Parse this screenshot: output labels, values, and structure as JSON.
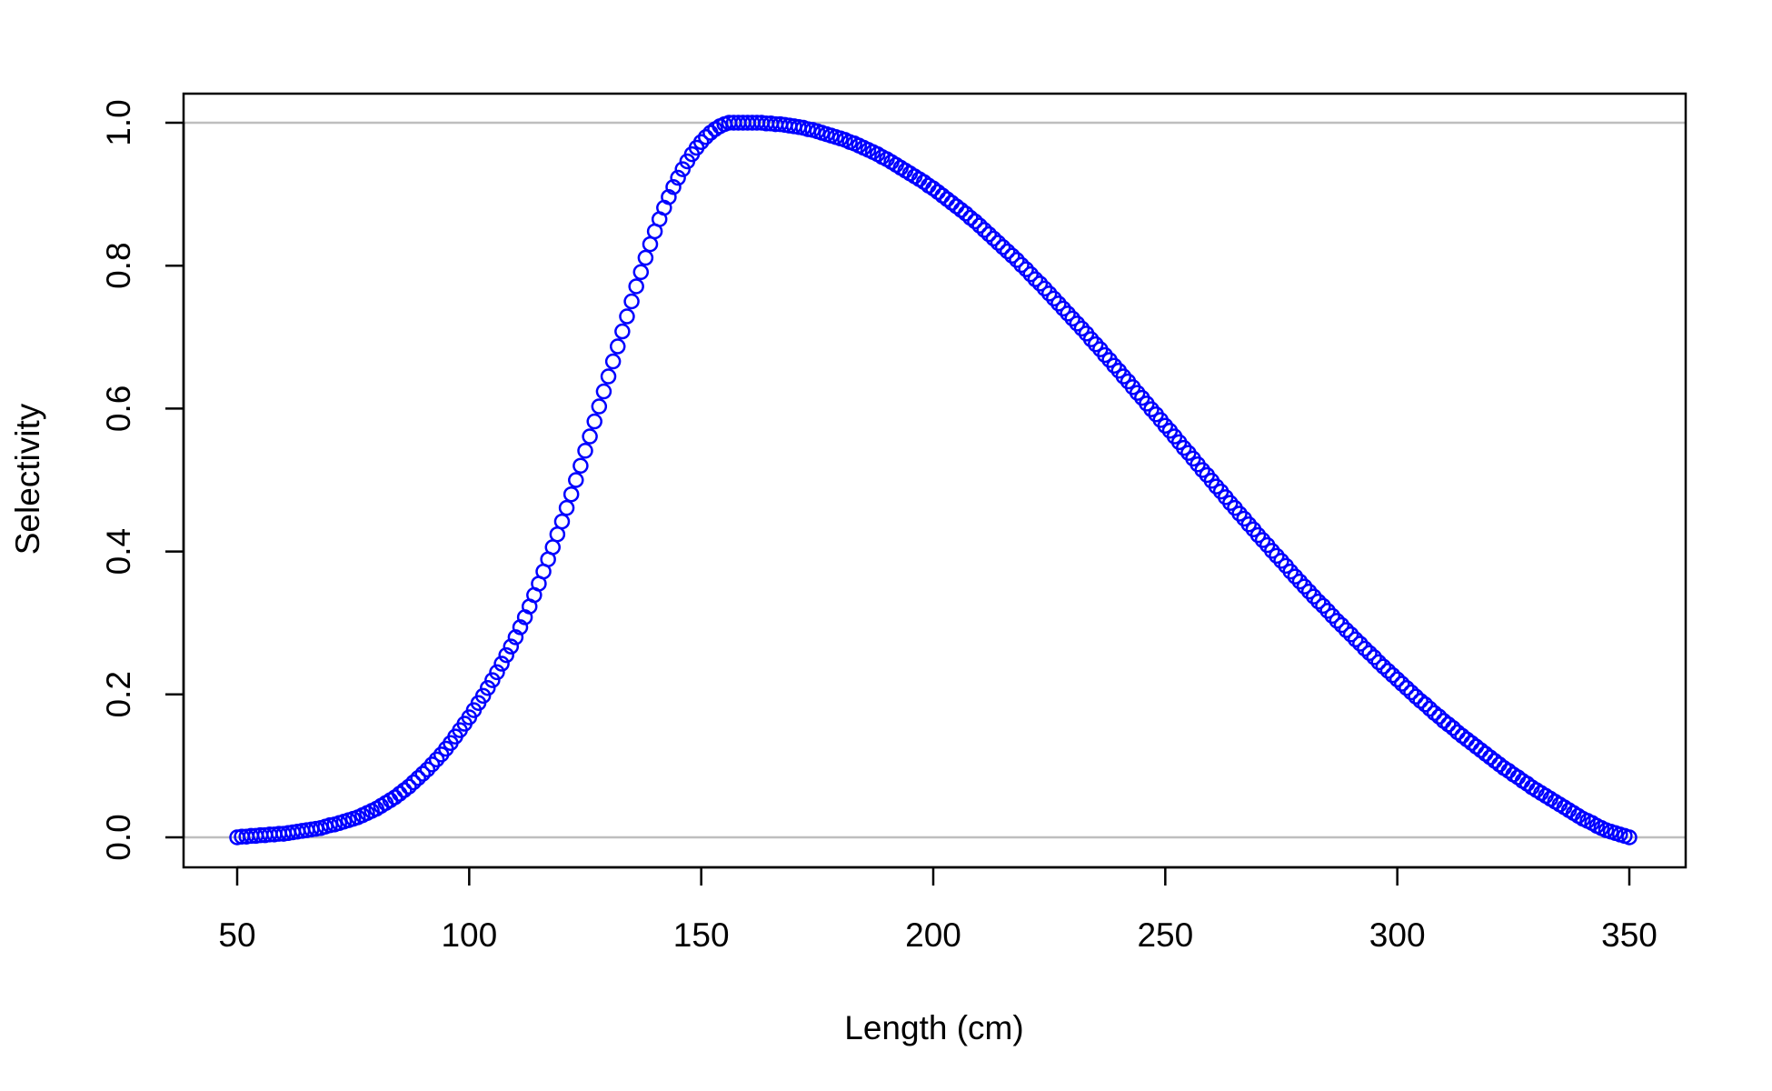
{
  "chart_data": {
    "type": "scatter",
    "title": "",
    "xlabel": "Length (cm)",
    "ylabel": "Selectivity",
    "xlim": [
      50,
      350
    ],
    "ylim": [
      0,
      1
    ],
    "xticks": [
      50,
      100,
      150,
      200,
      250,
      300,
      350
    ],
    "yticks": [
      0.0,
      0.2,
      0.4,
      0.6,
      0.8,
      1.0
    ],
    "ytick_labels": [
      "0.0",
      "0.2",
      "0.4",
      "0.6",
      "0.8",
      "1.0"
    ],
    "reference_lines_y": [
      0,
      1
    ],
    "marker": "open-circle",
    "series": [
      {
        "color": "#0000ff",
        "x_start": 50,
        "x_end": 350,
        "x_step": 1,
        "y": [
          0.0,
          0.001,
          0.001,
          0.002,
          0.002,
          0.003,
          0.003,
          0.004,
          0.004,
          0.005,
          0.005,
          0.006,
          0.007,
          0.008,
          0.009,
          0.01,
          0.011,
          0.012,
          0.013,
          0.015,
          0.017,
          0.018,
          0.02,
          0.022,
          0.024,
          0.026,
          0.028,
          0.031,
          0.034,
          0.037,
          0.04,
          0.044,
          0.048,
          0.052,
          0.056,
          0.061,
          0.066,
          0.071,
          0.077,
          0.083,
          0.089,
          0.095,
          0.102,
          0.109,
          0.116,
          0.124,
          0.132,
          0.141,
          0.15,
          0.159,
          0.168,
          0.178,
          0.188,
          0.198,
          0.209,
          0.22,
          0.231,
          0.243,
          0.255,
          0.267,
          0.28,
          0.294,
          0.308,
          0.323,
          0.339,
          0.355,
          0.372,
          0.389,
          0.406,
          0.424,
          0.442,
          0.461,
          0.48,
          0.5,
          0.52,
          0.541,
          0.561,
          0.582,
          0.603,
          0.624,
          0.645,
          0.666,
          0.687,
          0.708,
          0.729,
          0.75,
          0.771,
          0.791,
          0.811,
          0.83,
          0.848,
          0.865,
          0.881,
          0.896,
          0.91,
          0.923,
          0.935,
          0.946,
          0.956,
          0.965,
          0.973,
          0.98,
          0.986,
          0.991,
          0.995,
          0.998,
          1.0,
          1.0,
          1.0,
          1.0,
          1.0,
          1.0,
          1.0,
          1.0,
          0.999,
          0.999,
          0.998,
          0.998,
          0.997,
          0.996,
          0.995,
          0.994,
          0.993,
          0.991,
          0.99,
          0.988,
          0.986,
          0.984,
          0.982,
          0.98,
          0.978,
          0.976,
          0.973,
          0.971,
          0.968,
          0.965,
          0.962,
          0.959,
          0.956,
          0.952,
          0.949,
          0.945,
          0.941,
          0.937,
          0.933,
          0.929,
          0.925,
          0.921,
          0.917,
          0.912,
          0.908,
          0.903,
          0.898,
          0.893,
          0.888,
          0.883,
          0.878,
          0.873,
          0.867,
          0.862,
          0.856,
          0.85,
          0.844,
          0.838,
          0.832,
          0.826,
          0.82,
          0.814,
          0.808,
          0.801,
          0.795,
          0.788,
          0.781,
          0.775,
          0.768,
          0.761,
          0.754,
          0.747,
          0.74,
          0.733,
          0.726,
          0.719,
          0.712,
          0.705,
          0.697,
          0.69,
          0.683,
          0.675,
          0.668,
          0.66,
          0.653,
          0.645,
          0.638,
          0.63,
          0.622,
          0.615,
          0.607,
          0.599,
          0.592,
          0.584,
          0.576,
          0.569,
          0.561,
          0.553,
          0.545,
          0.538,
          0.53,
          0.522,
          0.514,
          0.507,
          0.499,
          0.491,
          0.484,
          0.476,
          0.468,
          0.461,
          0.453,
          0.446,
          0.438,
          0.431,
          0.423,
          0.416,
          0.409,
          0.401,
          0.394,
          0.387,
          0.38,
          0.372,
          0.365,
          0.358,
          0.351,
          0.344,
          0.337,
          0.33,
          0.324,
          0.317,
          0.31,
          0.303,
          0.297,
          0.29,
          0.284,
          0.277,
          0.271,
          0.264,
          0.258,
          0.252,
          0.245,
          0.239,
          0.233,
          0.227,
          0.221,
          0.215,
          0.209,
          0.203,
          0.197,
          0.191,
          0.186,
          0.18,
          0.174,
          0.169,
          0.163,
          0.158,
          0.153,
          0.147,
          0.142,
          0.137,
          0.132,
          0.127,
          0.122,
          0.117,
          0.112,
          0.107,
          0.102,
          0.097,
          0.093,
          0.088,
          0.084,
          0.079,
          0.075,
          0.07,
          0.066,
          0.062,
          0.058,
          0.054,
          0.05,
          0.046,
          0.042,
          0.038,
          0.034,
          0.03,
          0.026,
          0.023,
          0.02,
          0.016,
          0.013,
          0.01,
          0.008,
          0.006,
          0.004,
          0.002,
          0.0
        ]
      }
    ]
  },
  "colors": {
    "series": "#0000ff",
    "reference_line": "#bebebe",
    "axis": "#000000"
  }
}
